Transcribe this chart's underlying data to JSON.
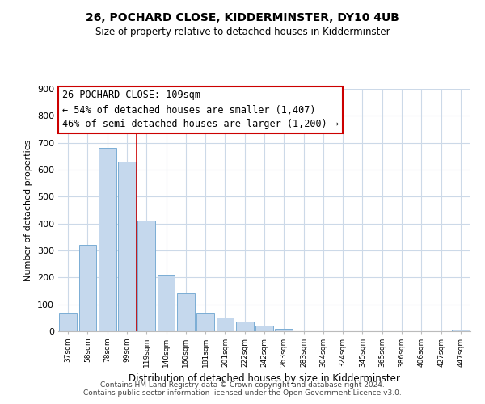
{
  "title": "26, POCHARD CLOSE, KIDDERMINSTER, DY10 4UB",
  "subtitle": "Size of property relative to detached houses in Kidderminster",
  "xlabel": "Distribution of detached houses by size in Kidderminster",
  "ylabel": "Number of detached properties",
  "bar_labels": [
    "37sqm",
    "58sqm",
    "78sqm",
    "99sqm",
    "119sqm",
    "140sqm",
    "160sqm",
    "181sqm",
    "201sqm",
    "222sqm",
    "242sqm",
    "263sqm",
    "283sqm",
    "304sqm",
    "324sqm",
    "345sqm",
    "365sqm",
    "386sqm",
    "406sqm",
    "427sqm",
    "447sqm"
  ],
  "bar_values": [
    70,
    320,
    680,
    630,
    410,
    210,
    140,
    70,
    50,
    37,
    22,
    10,
    0,
    0,
    0,
    0,
    0,
    0,
    0,
    0,
    5
  ],
  "bar_color": "#c5d8ed",
  "bar_edge_color": "#7aadd4",
  "annotation_line_color": "#cc0000",
  "annotation_box_text_line1": "26 POCHARD CLOSE: 109sqm",
  "annotation_box_text_line2": "← 54% of detached houses are smaller (1,407)",
  "annotation_box_text_line3": "46% of semi-detached houses are larger (1,200) →",
  "annotation_box_color": "#ffffff",
  "annotation_box_edge_color": "#cc0000",
  "ylim": [
    0,
    900
  ],
  "yticks": [
    0,
    100,
    200,
    300,
    400,
    500,
    600,
    700,
    800,
    900
  ],
  "footer_line1": "Contains HM Land Registry data © Crown copyright and database right 2024.",
  "footer_line2": "Contains public sector information licensed under the Open Government Licence v3.0.",
  "background_color": "#ffffff",
  "grid_color": "#ccd9e8",
  "title_fontsize": 10,
  "subtitle_fontsize": 8.5,
  "ylabel_fontsize": 8,
  "xlabel_fontsize": 8.5,
  "footer_fontsize": 6.5,
  "annotation_fontsize": 8.5,
  "red_line_x": 3.5
}
